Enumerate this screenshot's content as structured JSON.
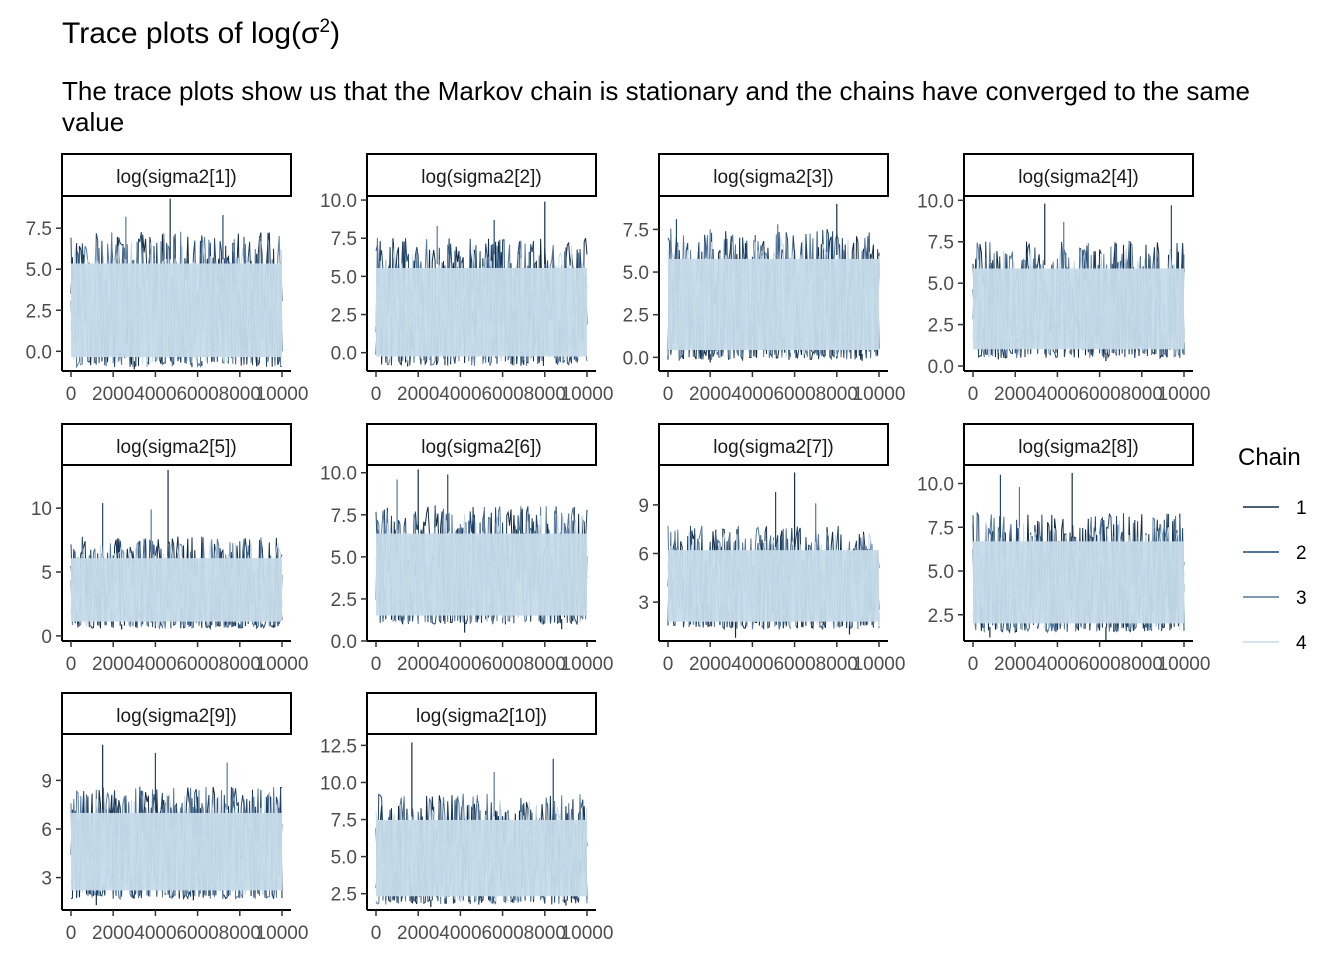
{
  "title_text": "Trace plots of log(",
  "title_symbol": "σ",
  "title_sup": "2",
  "title_close": ")",
  "subtitle": "The trace plots show us that the Markov chain is stationary and the chains have converged to the same value",
  "legend": {
    "title": "Chain",
    "items": [
      "1",
      "2",
      "3",
      "4"
    ]
  },
  "colors": {
    "chain1": "#132B43",
    "chain2": "#1f4770",
    "chain3": "#56789c",
    "chain4": "#c6dbe9"
  },
  "chart_data": [
    {
      "type": "line",
      "title": "log(sigma2[1])",
      "xlim": [
        0,
        10000
      ],
      "x_ticks": [
        0,
        2000,
        4000,
        6000,
        8000,
        10000
      ],
      "x_tick_labels": [
        "0",
        "2000",
        "4000",
        "6000",
        "8000",
        "10000"
      ],
      "ylim": [
        -1.2,
        9.4
      ],
      "y_ticks": [
        0,
        2.5,
        5,
        7.5
      ],
      "y_tick_labels": [
        "0.0",
        "2.5",
        "5.0",
        "7.5"
      ],
      "band": [
        -0.6,
        5.6
      ],
      "peaks": [
        [
          4700,
          9.3
        ],
        [
          7200,
          8.3
        ],
        [
          2600,
          8.2
        ]
      ],
      "dips": [
        [
          3000,
          -1.1
        ],
        [
          6200,
          -0.9
        ]
      ],
      "series": [
        {
          "name": "1"
        },
        {
          "name": "2"
        },
        {
          "name": "3"
        },
        {
          "name": "4"
        }
      ]
    },
    {
      "type": "line",
      "title": "log(sigma2[2])",
      "xlim": [
        0,
        10000
      ],
      "x_ticks": [
        0,
        2000,
        4000,
        6000,
        8000,
        10000
      ],
      "x_tick_labels": [
        "0",
        "2000",
        "4000",
        "6000",
        "8000",
        "10000"
      ],
      "ylim": [
        -1.2,
        10.2
      ],
      "y_ticks": [
        0,
        2.5,
        5,
        7.5,
        10
      ],
      "y_tick_labels": [
        "0.0",
        "2.5",
        "5.0",
        "7.5",
        "10.0"
      ],
      "band": [
        -0.5,
        5.8
      ],
      "peaks": [
        [
          8000,
          9.9
        ],
        [
          5600,
          8.7
        ],
        [
          2900,
          8.3
        ]
      ],
      "dips": [
        [
          1500,
          -0.9
        ],
        [
          7000,
          -0.8
        ]
      ],
      "series": [
        {
          "name": "1"
        },
        {
          "name": "2"
        },
        {
          "name": "3"
        },
        {
          "name": "4"
        }
      ]
    },
    {
      "type": "line",
      "title": "log(sigma2[3])",
      "xlim": [
        0,
        10000
      ],
      "x_ticks": [
        0,
        2000,
        4000,
        6000,
        8000,
        10000
      ],
      "x_tick_labels": [
        "0",
        "2000",
        "4000",
        "6000",
        "8000",
        "10000"
      ],
      "ylim": [
        -0.8,
        9.4
      ],
      "y_ticks": [
        0,
        2.5,
        5,
        7.5
      ],
      "y_tick_labels": [
        "0.0",
        "2.5",
        "5.0",
        "7.5"
      ],
      "band": [
        0.2,
        6.0
      ],
      "peaks": [
        [
          8000,
          9.0
        ],
        [
          400,
          8.1
        ],
        [
          5200,
          7.8
        ]
      ],
      "dips": [
        [
          2000,
          -0.3
        ],
        [
          9200,
          -0.2
        ]
      ],
      "series": [
        {
          "name": "1"
        },
        {
          "name": "2"
        },
        {
          "name": "3"
        },
        {
          "name": "4"
        }
      ]
    },
    {
      "type": "line",
      "title": "log(sigma2[4])",
      "xlim": [
        0,
        10000
      ],
      "x_ticks": [
        0,
        2000,
        4000,
        6000,
        8000,
        10000
      ],
      "x_tick_labels": [
        "0",
        "2000",
        "4000",
        "6000",
        "8000",
        "10000"
      ],
      "ylim": [
        -0.3,
        10.2
      ],
      "y_ticks": [
        0,
        2.5,
        5,
        7.5,
        10
      ],
      "y_tick_labels": [
        "0.0",
        "2.5",
        "5.0",
        "7.5",
        "10.0"
      ],
      "band": [
        0.8,
        6.1
      ],
      "peaks": [
        [
          3400,
          9.8
        ],
        [
          9400,
          9.7
        ],
        [
          4300,
          8.7
        ]
      ],
      "dips": [
        [
          6300,
          0.3
        ],
        [
          1200,
          0.4
        ]
      ],
      "series": [
        {
          "name": "1"
        },
        {
          "name": "2"
        },
        {
          "name": "3"
        },
        {
          "name": "4"
        }
      ]
    },
    {
      "type": "line",
      "title": "log(sigma2[5])",
      "xlim": [
        0,
        10000
      ],
      "x_ticks": [
        0,
        2000,
        4000,
        6000,
        8000,
        10000
      ],
      "x_tick_labels": [
        "0",
        "2000",
        "4000",
        "6000",
        "8000",
        "10000"
      ],
      "ylim": [
        -0.4,
        13.3
      ],
      "y_ticks": [
        0,
        5,
        10
      ],
      "y_tick_labels": [
        "0",
        "5",
        "10"
      ],
      "band": [
        0.9,
        6.3
      ],
      "peaks": [
        [
          4600,
          13.0
        ],
        [
          1500,
          10.4
        ],
        [
          3800,
          9.9
        ]
      ],
      "dips": [
        [
          2400,
          0.5
        ],
        [
          8000,
          0.6
        ]
      ],
      "series": [
        {
          "name": "1"
        },
        {
          "name": "2"
        },
        {
          "name": "3"
        },
        {
          "name": "4"
        }
      ]
    },
    {
      "type": "line",
      "title": "log(sigma2[6])",
      "xlim": [
        0,
        10000
      ],
      "x_ticks": [
        0,
        2000,
        4000,
        6000,
        8000,
        10000
      ],
      "x_tick_labels": [
        "0",
        "2000",
        "4000",
        "6000",
        "8000",
        "10000"
      ],
      "ylim": [
        0,
        10.4
      ],
      "y_ticks": [
        0,
        2.5,
        5,
        7.5,
        10
      ],
      "y_tick_labels": [
        "0.0",
        "2.5",
        "5.0",
        "7.5",
        "10.0"
      ],
      "band": [
        1.3,
        6.6
      ],
      "peaks": [
        [
          2000,
          10.2
        ],
        [
          3400,
          9.9
        ],
        [
          1000,
          9.6
        ]
      ],
      "dips": [
        [
          4200,
          0.5
        ],
        [
          8800,
          0.7
        ]
      ],
      "series": [
        {
          "name": "1"
        },
        {
          "name": "2"
        },
        {
          "name": "3"
        },
        {
          "name": "4"
        }
      ]
    },
    {
      "type": "line",
      "title": "log(sigma2[7])",
      "xlim": [
        0,
        10000
      ],
      "x_ticks": [
        0,
        2000,
        4000,
        6000,
        8000,
        10000
      ],
      "x_tick_labels": [
        "0",
        "2000",
        "4000",
        "6000",
        "8000",
        "10000"
      ],
      "ylim": [
        0.6,
        11.4
      ],
      "y_ticks": [
        3,
        6,
        9
      ],
      "y_tick_labels": [
        "3",
        "6",
        "9"
      ],
      "band": [
        1.6,
        6.4
      ],
      "peaks": [
        [
          6000,
          11.0
        ],
        [
          5100,
          9.8
        ],
        [
          7000,
          9.1
        ]
      ],
      "dips": [
        [
          3200,
          0.8
        ],
        [
          8600,
          1.0
        ]
      ],
      "series": [
        {
          "name": "1"
        },
        {
          "name": "2"
        },
        {
          "name": "3"
        },
        {
          "name": "4"
        }
      ]
    },
    {
      "type": "line",
      "title": "log(sigma2[8])",
      "xlim": [
        0,
        10000
      ],
      "x_ticks": [
        0,
        2000,
        4000,
        6000,
        8000,
        10000
      ],
      "x_tick_labels": [
        "0",
        "2000",
        "4000",
        "6000",
        "8000",
        "10000"
      ],
      "ylim": [
        1.0,
        11.0
      ],
      "y_ticks": [
        2.5,
        5,
        7.5,
        10
      ],
      "y_tick_labels": [
        "2.5",
        "5.0",
        "7.5",
        "10.0"
      ],
      "band": [
        1.8,
        6.9
      ],
      "peaks": [
        [
          4700,
          10.6
        ],
        [
          1300,
          10.5
        ],
        [
          2200,
          9.8
        ]
      ],
      "dips": [
        [
          6300,
          1.0
        ],
        [
          800,
          1.2
        ]
      ],
      "series": [
        {
          "name": "1"
        },
        {
          "name": "2"
        },
        {
          "name": "3"
        },
        {
          "name": "4"
        }
      ]
    },
    {
      "type": "line",
      "title": "log(sigma2[9])",
      "xlim": [
        0,
        10000
      ],
      "x_ticks": [
        0,
        2000,
        4000,
        6000,
        8000,
        10000
      ],
      "x_tick_labels": [
        "0",
        "2000",
        "4000",
        "6000",
        "8000",
        "10000"
      ],
      "ylim": [
        1.0,
        11.8
      ],
      "y_ticks": [
        3,
        6,
        9
      ],
      "y_tick_labels": [
        "3",
        "6",
        "9"
      ],
      "band": [
        2.0,
        7.2
      ],
      "peaks": [
        [
          1500,
          11.2
        ],
        [
          4000,
          10.7
        ],
        [
          7400,
          10.1
        ]
      ],
      "dips": [
        [
          1200,
          1.3
        ],
        [
          5800,
          1.6
        ]
      ],
      "series": [
        {
          "name": "1"
        },
        {
          "name": "2"
        },
        {
          "name": "3"
        },
        {
          "name": "4"
        }
      ]
    },
    {
      "type": "line",
      "title": "log(sigma2[10])",
      "xlim": [
        0,
        10000
      ],
      "x_ticks": [
        0,
        2000,
        4000,
        6000,
        8000,
        10000
      ],
      "x_tick_labels": [
        "0",
        "2000",
        "4000",
        "6000",
        "8000",
        "10000"
      ],
      "ylim": [
        1.4,
        13.2
      ],
      "y_ticks": [
        2.5,
        5,
        7.5,
        10,
        12.5
      ],
      "y_tick_labels": [
        "2.5",
        "5.0",
        "7.5",
        "10.0",
        "12.5"
      ],
      "band": [
        2.1,
        7.7
      ],
      "peaks": [
        [
          1700,
          12.7
        ],
        [
          8400,
          11.6
        ],
        [
          5600,
          10.7
        ]
      ],
      "dips": [
        [
          2600,
          1.6
        ],
        [
          9000,
          1.7
        ]
      ],
      "series": [
        {
          "name": "1"
        },
        {
          "name": "2"
        },
        {
          "name": "3"
        },
        {
          "name": "4"
        }
      ]
    }
  ]
}
